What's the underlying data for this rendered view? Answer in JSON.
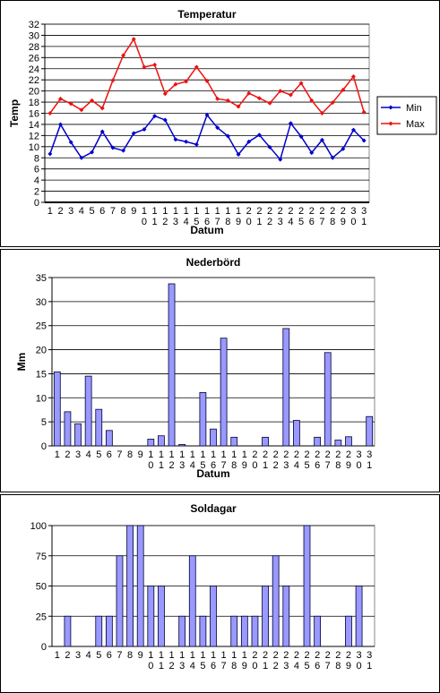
{
  "chart_data": [
    {
      "type": "line",
      "title": "Temperatur",
      "y_label": "Temp",
      "x_label": "Datum",
      "categories": [
        "1",
        "2",
        "3",
        "4",
        "5",
        "6",
        "7",
        "8",
        "9",
        "10",
        "11",
        "12",
        "13",
        "14",
        "15",
        "16",
        "17",
        "18",
        "19",
        "20",
        "21",
        "22",
        "23",
        "24",
        "25",
        "26",
        "27",
        "28",
        "29",
        "30",
        "31"
      ],
      "series": [
        {
          "name": "Min",
          "color": "#0000cc",
          "values": [
            8.7,
            14,
            10.8,
            8,
            9,
            12.7,
            9.8,
            9.3,
            12.4,
            13.1,
            15.5,
            14.8,
            11.3,
            10.9,
            10.4,
            15.7,
            13.4,
            11.9,
            8.6,
            10.9,
            12.1,
            9.9,
            7.7,
            14.2,
            11.8,
            8.9,
            11.2,
            8,
            9.6,
            13,
            11.1
          ]
        },
        {
          "name": "Max",
          "color": "#ee1111",
          "values": [
            16,
            18.6,
            17.7,
            16.6,
            18.3,
            16.9,
            21.9,
            26.4,
            29.3,
            24.3,
            24.7,
            19.5,
            21.2,
            21.7,
            24.3,
            21.8,
            18.6,
            18.3,
            17.2,
            19.6,
            18.7,
            17.8,
            20,
            19.3,
            21.4,
            18.3,
            16,
            17.9,
            20.2,
            22.6,
            16.2
          ]
        }
      ],
      "ylim": [
        0,
        32
      ],
      "yticks": [
        0,
        2,
        4,
        6,
        8,
        10,
        12,
        14,
        16,
        18,
        20,
        22,
        24,
        26,
        28,
        30,
        32
      ],
      "grid": true,
      "legend": "right"
    },
    {
      "type": "bar",
      "title": "Nederbörd",
      "y_label": "Mm",
      "x_label": "Datum",
      "color": "#9999ff",
      "categories": [
        "1",
        "2",
        "3",
        "4",
        "5",
        "6",
        "7",
        "8",
        "9",
        "10",
        "11",
        "12",
        "13",
        "14",
        "15",
        "16",
        "17",
        "18",
        "19",
        "20",
        "21",
        "22",
        "23",
        "24",
        "25",
        "26",
        "27",
        "28",
        "29",
        "30",
        "31"
      ],
      "values": [
        15.4,
        7.1,
        4.6,
        14.5,
        7.6,
        3.2,
        0,
        0,
        0,
        1.4,
        2.1,
        33.7,
        0.3,
        0,
        11.1,
        3.5,
        22.4,
        1.8,
        0,
        0,
        1.8,
        0,
        24.4,
        5.3,
        0,
        1.8,
        19.4,
        1.2,
        1.9,
        0,
        6.1
      ],
      "ylim": [
        0,
        35
      ],
      "yticks": [
        0,
        5,
        10,
        15,
        20,
        25,
        30,
        35
      ],
      "grid": true
    },
    {
      "type": "bar",
      "title": "Soldagar",
      "color": "#9999ff",
      "categories": [
        "1",
        "2",
        "3",
        "4",
        "5",
        "6",
        "7",
        "8",
        "9",
        "10",
        "11",
        "12",
        "13",
        "14",
        "15",
        "16",
        "17",
        "18",
        "19",
        "20",
        "21",
        "22",
        "23",
        "24",
        "25",
        "26",
        "27",
        "28",
        "29",
        "30",
        "31"
      ],
      "values": [
        0,
        25,
        0,
        0,
        25,
        25,
        75,
        100,
        100,
        50,
        50,
        0,
        25,
        75,
        25,
        50,
        0,
        25,
        25,
        25,
        50,
        75,
        50,
        0,
        100,
        25,
        0,
        0,
        25,
        50,
        0
      ],
      "ylim": [
        0,
        100
      ],
      "yticks": [
        0,
        25,
        50,
        75,
        100
      ],
      "grid": true
    }
  ]
}
